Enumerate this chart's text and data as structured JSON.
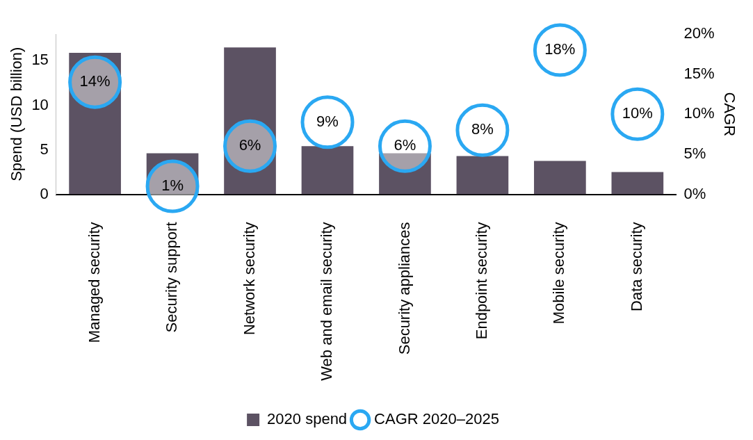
{
  "chart_data": {
    "type": "bar",
    "categories": [
      "Managed security",
      "Security support",
      "Network security",
      "Web and email security",
      "Security appliances",
      "Endpoint security",
      "Mobile security",
      "Data security"
    ],
    "series": [
      {
        "name": "2020 spend",
        "color": "#5c5263",
        "values": [
          15.9,
          4.6,
          16.5,
          5.4,
          4.6,
          4.3,
          3.75,
          2.5
        ]
      },
      {
        "name": "CAGR 2020–2025",
        "type": "scatter",
        "axis": "y2",
        "color": "#2aa8f2",
        "values": [
          14,
          1,
          6,
          9,
          6,
          8,
          18,
          10
        ],
        "value_labels": [
          "14%",
          "1%",
          "6%",
          "9%",
          "6%",
          "8%",
          "18%",
          "10%"
        ]
      }
    ],
    "ylabel": "Spend (USD billion)",
    "y2label": "CAGR",
    "ylim": [
      0,
      18
    ],
    "yticks": [
      0,
      5,
      10,
      15
    ],
    "y2lim": [
      0,
      20
    ],
    "y2ticks": [
      {
        "value": 0,
        "label": "0%"
      },
      {
        "value": 5,
        "label": "5%"
      },
      {
        "value": 10,
        "label": "10%"
      },
      {
        "value": 15,
        "label": "15%"
      },
      {
        "value": 20,
        "label": "20%"
      }
    ],
    "legend": "bottom",
    "grid": false,
    "marker": "circle"
  }
}
